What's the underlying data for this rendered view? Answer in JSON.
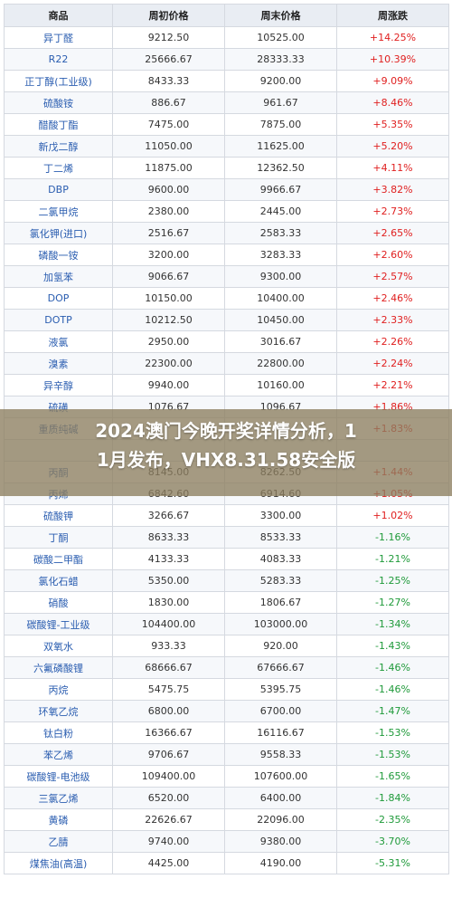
{
  "headers": [
    "商品",
    "周初价格",
    "周末价格",
    "周涨跌"
  ],
  "rows": [
    {
      "name": "异丁醛",
      "start": "9212.50",
      "end": "10525.00",
      "change": "+14.25%",
      "dir": "up"
    },
    {
      "name": "R22",
      "start": "25666.67",
      "end": "28333.33",
      "change": "+10.39%",
      "dir": "up"
    },
    {
      "name": "正丁醇(工业级)",
      "start": "8433.33",
      "end": "9200.00",
      "change": "+9.09%",
      "dir": "up"
    },
    {
      "name": "硫酸铵",
      "start": "886.67",
      "end": "961.67",
      "change": "+8.46%",
      "dir": "up"
    },
    {
      "name": "醋酸丁酯",
      "start": "7475.00",
      "end": "7875.00",
      "change": "+5.35%",
      "dir": "up"
    },
    {
      "name": "新戊二醇",
      "start": "11050.00",
      "end": "11625.00",
      "change": "+5.20%",
      "dir": "up"
    },
    {
      "name": "丁二烯",
      "start": "11875.00",
      "end": "12362.50",
      "change": "+4.11%",
      "dir": "up"
    },
    {
      "name": "DBP",
      "start": "9600.00",
      "end": "9966.67",
      "change": "+3.82%",
      "dir": "up"
    },
    {
      "name": "二氯甲烷",
      "start": "2380.00",
      "end": "2445.00",
      "change": "+2.73%",
      "dir": "up"
    },
    {
      "name": "氯化钾(进口)",
      "start": "2516.67",
      "end": "2583.33",
      "change": "+2.65%",
      "dir": "up"
    },
    {
      "name": "磷酸一铵",
      "start": "3200.00",
      "end": "3283.33",
      "change": "+2.60%",
      "dir": "up"
    },
    {
      "name": "加氢苯",
      "start": "9066.67",
      "end": "9300.00",
      "change": "+2.57%",
      "dir": "up"
    },
    {
      "name": "DOP",
      "start": "10150.00",
      "end": "10400.00",
      "change": "+2.46%",
      "dir": "up"
    },
    {
      "name": "DOTP",
      "start": "10212.50",
      "end": "10450.00",
      "change": "+2.33%",
      "dir": "up"
    },
    {
      "name": "液氯",
      "start": "2950.00",
      "end": "3016.67",
      "change": "+2.26%",
      "dir": "up"
    },
    {
      "name": "溴素",
      "start": "22300.00",
      "end": "22800.00",
      "change": "+2.24%",
      "dir": "up"
    },
    {
      "name": "异辛醇",
      "start": "9940.00",
      "end": "10160.00",
      "change": "+2.21%",
      "dir": "up"
    },
    {
      "name": "硫磺",
      "start": "1076.67",
      "end": "1096.67",
      "change": "+1.86%",
      "dir": "up"
    },
    {
      "name": "重质纯碱",
      "start": "",
      "end": "",
      "change": "+1.83%",
      "dir": "up"
    },
    {
      "name": "",
      "start": "",
      "end": "",
      "change": "",
      "dir": "up"
    },
    {
      "name": "丙酮",
      "start": "8145.00",
      "end": "8262.50",
      "change": "+1.44%",
      "dir": "up"
    },
    {
      "name": "丙烯",
      "start": "6842.60",
      "end": "6914.60",
      "change": "+1.05%",
      "dir": "up"
    },
    {
      "name": "硫酸钾",
      "start": "3266.67",
      "end": "3300.00",
      "change": "+1.02%",
      "dir": "up"
    },
    {
      "name": "丁酮",
      "start": "8633.33",
      "end": "8533.33",
      "change": "-1.16%",
      "dir": "down"
    },
    {
      "name": "碳酸二甲酯",
      "start": "4133.33",
      "end": "4083.33",
      "change": "-1.21%",
      "dir": "down"
    },
    {
      "name": "氯化石蜡",
      "start": "5350.00",
      "end": "5283.33",
      "change": "-1.25%",
      "dir": "down"
    },
    {
      "name": "硝酸",
      "start": "1830.00",
      "end": "1806.67",
      "change": "-1.27%",
      "dir": "down"
    },
    {
      "name": "碳酸锂-工业级",
      "start": "104400.00",
      "end": "103000.00",
      "change": "-1.34%",
      "dir": "down"
    },
    {
      "name": "双氧水",
      "start": "933.33",
      "end": "920.00",
      "change": "-1.43%",
      "dir": "down"
    },
    {
      "name": "六氟磷酸锂",
      "start": "68666.67",
      "end": "67666.67",
      "change": "-1.46%",
      "dir": "down"
    },
    {
      "name": "丙烷",
      "start": "5475.75",
      "end": "5395.75",
      "change": "-1.46%",
      "dir": "down"
    },
    {
      "name": "环氧乙烷",
      "start": "6800.00",
      "end": "6700.00",
      "change": "-1.47%",
      "dir": "down"
    },
    {
      "name": "钛白粉",
      "start": "16366.67",
      "end": "16116.67",
      "change": "-1.53%",
      "dir": "down"
    },
    {
      "name": "苯乙烯",
      "start": "9706.67",
      "end": "9558.33",
      "change": "-1.53%",
      "dir": "down"
    },
    {
      "name": "碳酸锂-电池级",
      "start": "109400.00",
      "end": "107600.00",
      "change": "-1.65%",
      "dir": "down"
    },
    {
      "name": "三氯乙烯",
      "start": "6520.00",
      "end": "6400.00",
      "change": "-1.84%",
      "dir": "down"
    },
    {
      "name": "黄磷",
      "start": "22626.67",
      "end": "22096.00",
      "change": "-2.35%",
      "dir": "down"
    },
    {
      "name": "乙腈",
      "start": "9740.00",
      "end": "9380.00",
      "change": "-3.70%",
      "dir": "down"
    },
    {
      "name": "煤焦油(高温)",
      "start": "4425.00",
      "end": "4190.00",
      "change": "-5.31%",
      "dir": "down"
    }
  ],
  "banner": {
    "line1": "2024澳门今晚开奖详情分析，1",
    "line2": "1月发布，VHX8.31.58安全版"
  }
}
